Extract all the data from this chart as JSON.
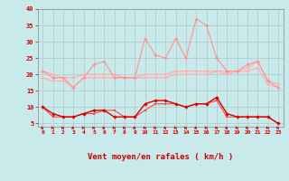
{
  "x": [
    0,
    1,
    2,
    3,
    4,
    5,
    6,
    7,
    8,
    9,
    10,
    11,
    12,
    13,
    14,
    15,
    16,
    17,
    18,
    19,
    20,
    21,
    22,
    23
  ],
  "line_rafales": [
    21,
    19,
    19,
    16,
    19,
    23,
    24,
    19,
    19,
    19,
    31,
    26,
    25,
    31,
    25,
    37,
    35,
    25,
    21,
    21,
    23,
    24,
    18,
    16
  ],
  "line_moyen_hi": [
    21,
    20,
    19,
    19,
    20,
    20,
    20,
    20,
    19,
    19,
    20,
    20,
    20,
    21,
    21,
    21,
    21,
    21,
    21,
    21,
    22,
    24,
    18,
    17
  ],
  "line_moyen_lo": [
    19,
    18,
    18,
    16,
    19,
    19,
    19,
    19,
    19,
    19,
    19,
    19,
    19,
    20,
    20,
    20,
    20,
    21,
    20,
    21,
    21,
    22,
    17,
    16
  ],
  "line_min": [
    10,
    8,
    7,
    7,
    8,
    9,
    9,
    7,
    7,
    7,
    11,
    12,
    12,
    11,
    10,
    11,
    11,
    13,
    8,
    7,
    7,
    7,
    7,
    5
  ],
  "line_min2": [
    10,
    7,
    7,
    7,
    8,
    8,
    9,
    9,
    7,
    7,
    9,
    11,
    11,
    11,
    10,
    11,
    11,
    12,
    7,
    7,
    7,
    7,
    7,
    5
  ],
  "xlabel": "Vent moyen/en rafales ( km/h )",
  "ylim": [
    4,
    40
  ],
  "xlim": [
    -0.5,
    23.5
  ],
  "yticks": [
    5,
    10,
    15,
    20,
    25,
    30,
    35,
    40
  ],
  "xticks": [
    0,
    1,
    2,
    3,
    4,
    5,
    6,
    7,
    8,
    9,
    10,
    11,
    12,
    13,
    14,
    15,
    16,
    17,
    18,
    19,
    20,
    21,
    22,
    23
  ],
  "bg_color": "#c8eaea",
  "grid_color": "#b0c8c8",
  "line_rafales_color": "#ff9090",
  "line_moyen_hi_color": "#ffb0b0",
  "line_moyen_lo_color": "#ffb0b0",
  "line_min_color": "#dd0000",
  "line_min2_color": "#ff4444",
  "arrow_color": "#cc0000",
  "tick_color": "#cc0000",
  "label_color": "#cc0000"
}
